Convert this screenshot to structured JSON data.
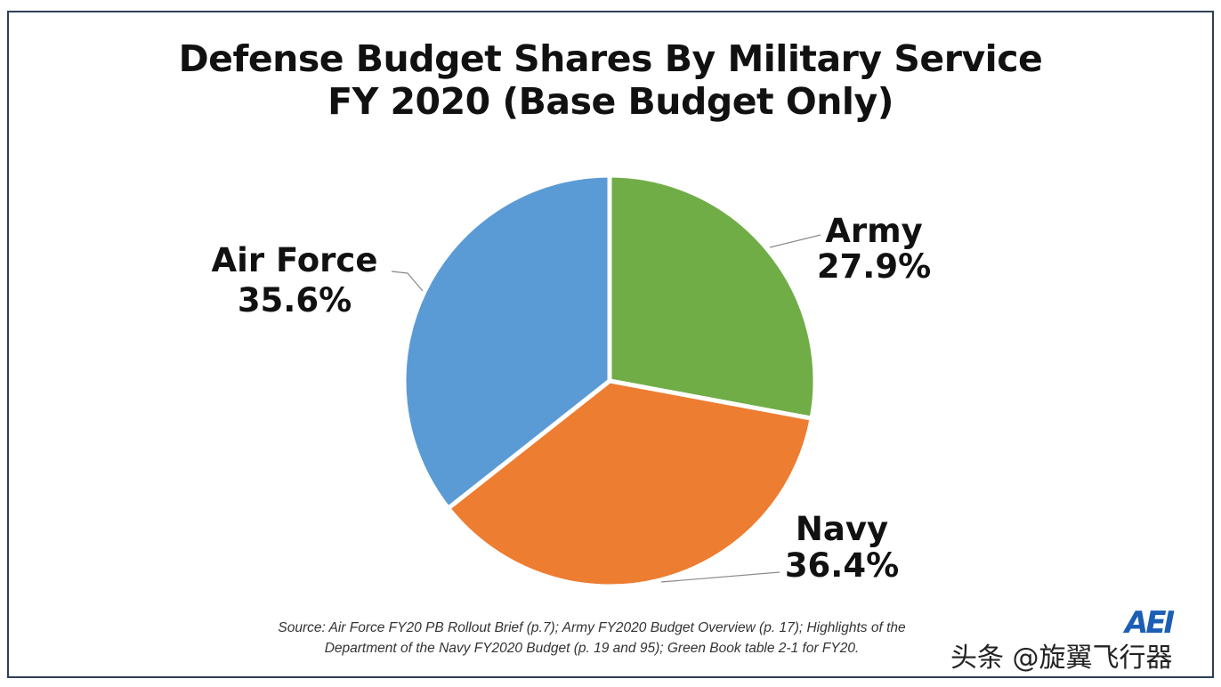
{
  "title_line1": "Defense Budget Shares By Military Service",
  "title_line2": "FY 2020 (Base Budget Only)",
  "source_line1": "Source: Air Force FY20 PB Rollout Brief (p.7); Army FY2020 Budget Overview (p. 17); Highlights of the",
  "source_line2": "Department of the Navy  FY2020 Budget (p. 19 and 95); Green Book table 2-1 for FY20.",
  "logo_text": "AEI",
  "watermark_text": "头条 @旋翼飞行器",
  "chart_data": {
    "type": "pie",
    "title": "Defense Budget Shares By Military Service FY 2020 (Base Budget Only)",
    "start": "12 o'clock, clockwise",
    "slices": [
      {
        "label": "Army",
        "value": 27.9,
        "value_label": "27.9%",
        "color": "#70ad47"
      },
      {
        "label": "Navy",
        "value": 36.4,
        "value_label": "36.4%",
        "color": "#ed7d31"
      },
      {
        "label": "Air Force",
        "value": 35.6,
        "value_label": "35.6%",
        "color": "#5b9bd5"
      }
    ]
  }
}
